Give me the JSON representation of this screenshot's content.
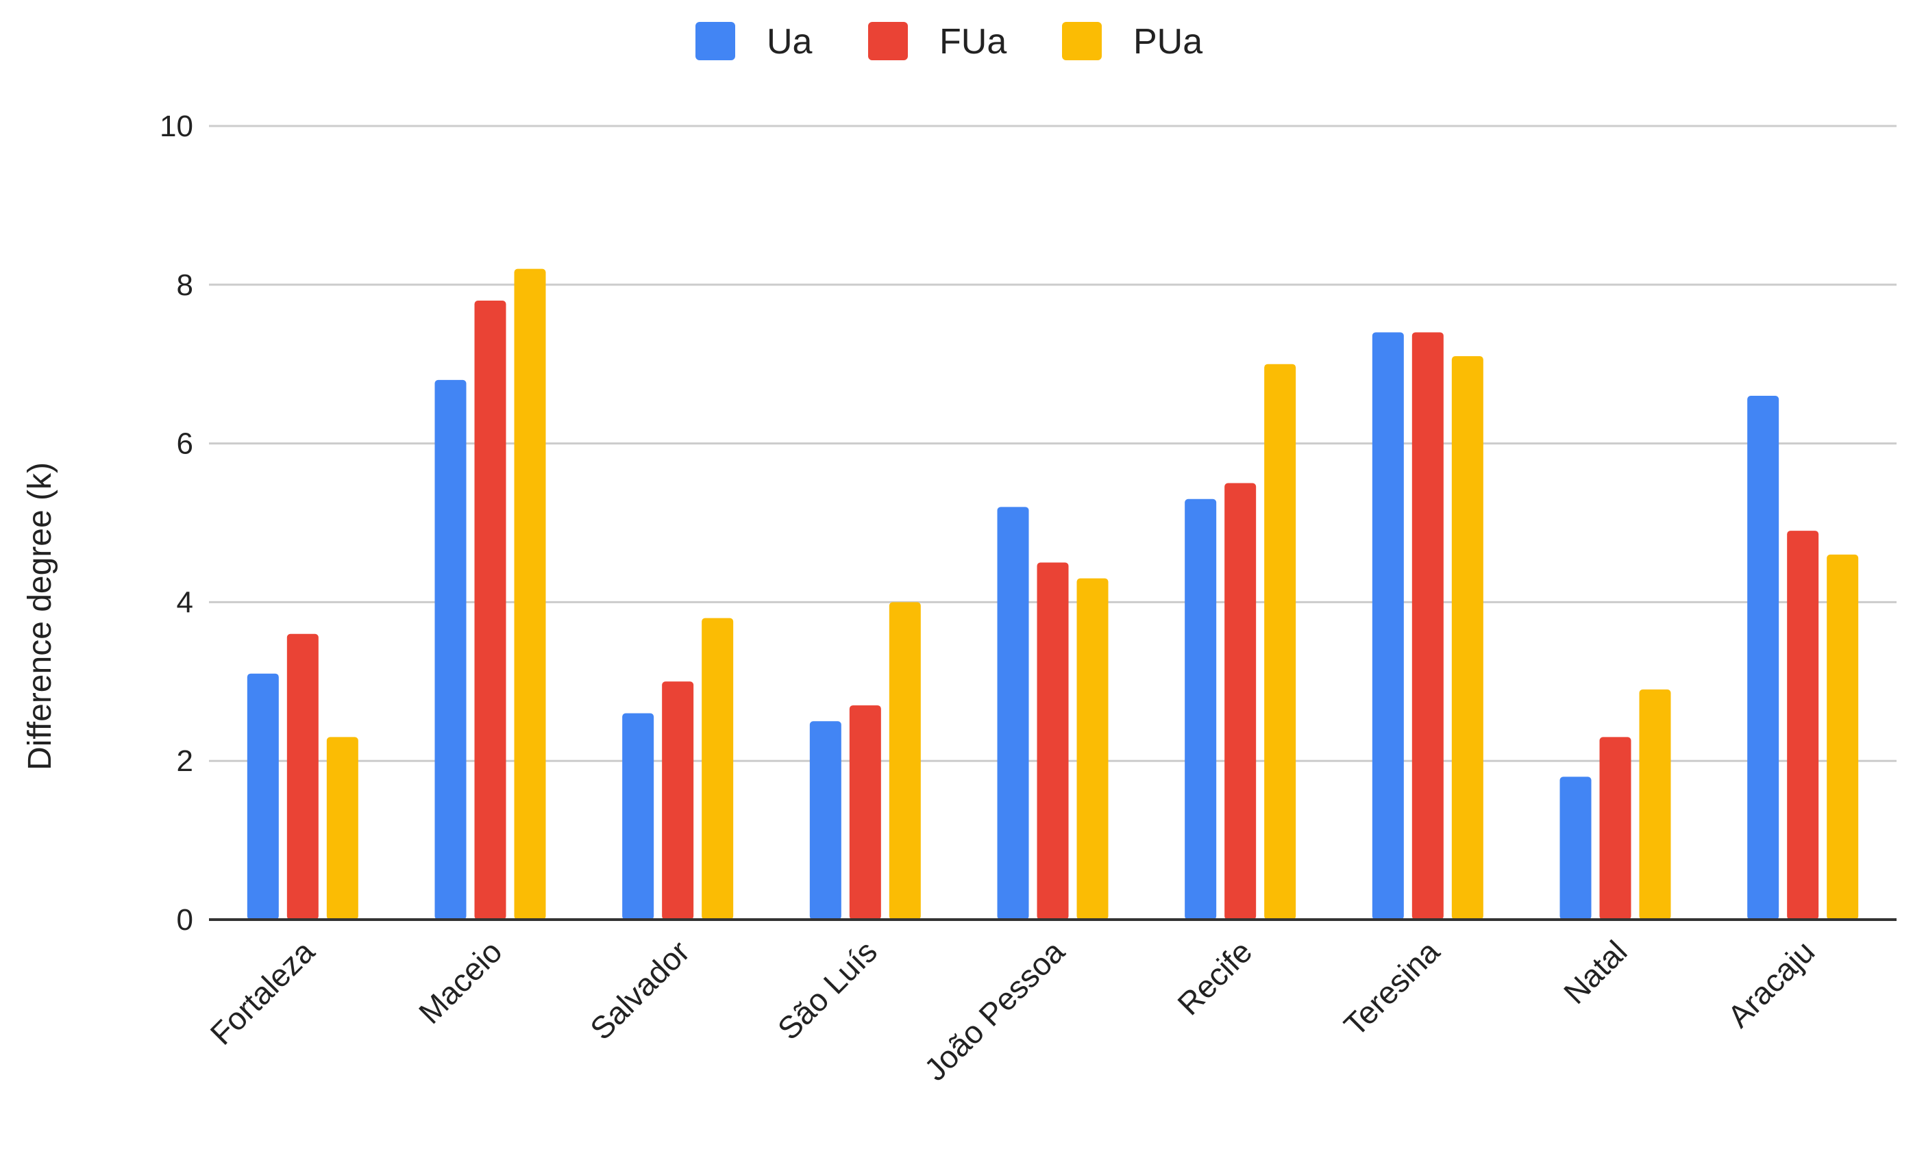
{
  "chart_data": {
    "type": "bar",
    "title": "",
    "xlabel": "",
    "ylabel": "Difference degree (k)",
    "ylim": [
      0,
      10
    ],
    "yticks": [
      0,
      2,
      4,
      6,
      8,
      10
    ],
    "grid": true,
    "legend_position": "top-center",
    "categories": [
      "Fortaleza",
      "Maceio",
      "Salvador",
      "São Luís",
      "João Pessoa",
      "Recife",
      "Teresina",
      "Natal",
      "Aracaju"
    ],
    "series": [
      {
        "name": "Ua",
        "color": "#4285F4",
        "values": [
          3.1,
          6.8,
          2.6,
          2.5,
          5.2,
          5.3,
          7.4,
          1.8,
          6.6
        ]
      },
      {
        "name": "FUa",
        "color": "#EA4335",
        "values": [
          3.6,
          7.8,
          3.0,
          2.7,
          4.5,
          5.5,
          7.4,
          2.3,
          4.9
        ]
      },
      {
        "name": "PUa",
        "color": "#FBBC04",
        "values": [
          2.3,
          8.2,
          3.8,
          4.0,
          4.3,
          7.0,
          7.1,
          2.9,
          4.6
        ]
      }
    ]
  }
}
